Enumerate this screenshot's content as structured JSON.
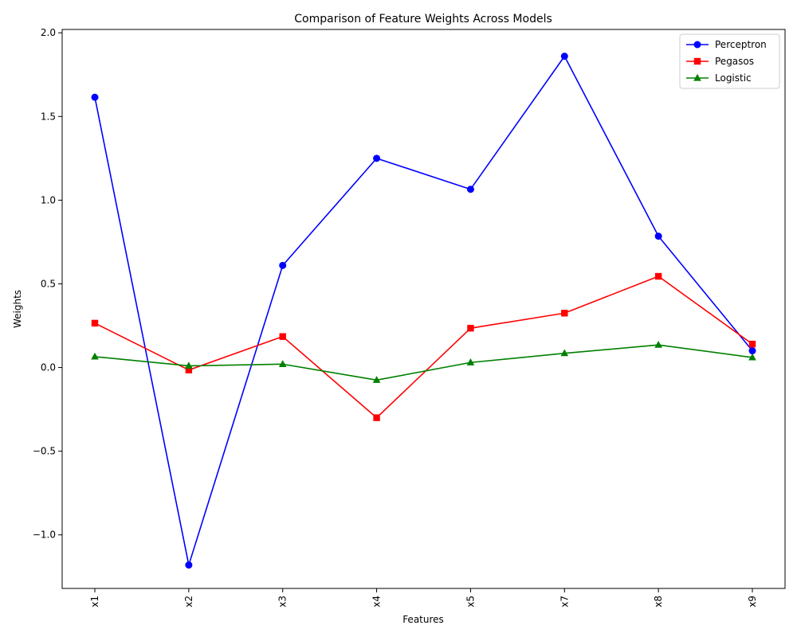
{
  "chart_data": {
    "type": "line",
    "title": "Comparison of Feature Weights Across Models",
    "xlabel": "Features",
    "ylabel": "Weights",
    "categories": [
      "x1",
      "x2",
      "x3",
      "x4",
      "x5",
      "x7",
      "x8",
      "x9"
    ],
    "ylim": [
      -1.32,
      2.02
    ],
    "yticks": [
      -1.0,
      -0.5,
      0.0,
      0.5,
      1.0,
      1.5,
      2.0
    ],
    "ytick_labels": [
      "−1.0",
      "−0.5",
      "0.0",
      "0.5",
      "1.0",
      "1.5",
      "2.0"
    ],
    "grid": false,
    "legend_position": "top-right",
    "series": [
      {
        "name": "Perceptron",
        "color": "#0000ff",
        "marker": "circle",
        "values": [
          1.615,
          -1.18,
          0.61,
          1.25,
          1.065,
          1.86,
          0.785,
          0.1
        ]
      },
      {
        "name": "Pegasos",
        "color": "#ff0000",
        "marker": "square",
        "values": [
          0.265,
          -0.015,
          0.185,
          -0.3,
          0.235,
          0.325,
          0.545,
          0.14
        ]
      },
      {
        "name": "Logistic",
        "color": "#008000",
        "marker": "triangle",
        "values": [
          0.065,
          0.01,
          0.02,
          -0.075,
          0.03,
          0.085,
          0.135,
          0.06
        ]
      }
    ]
  }
}
